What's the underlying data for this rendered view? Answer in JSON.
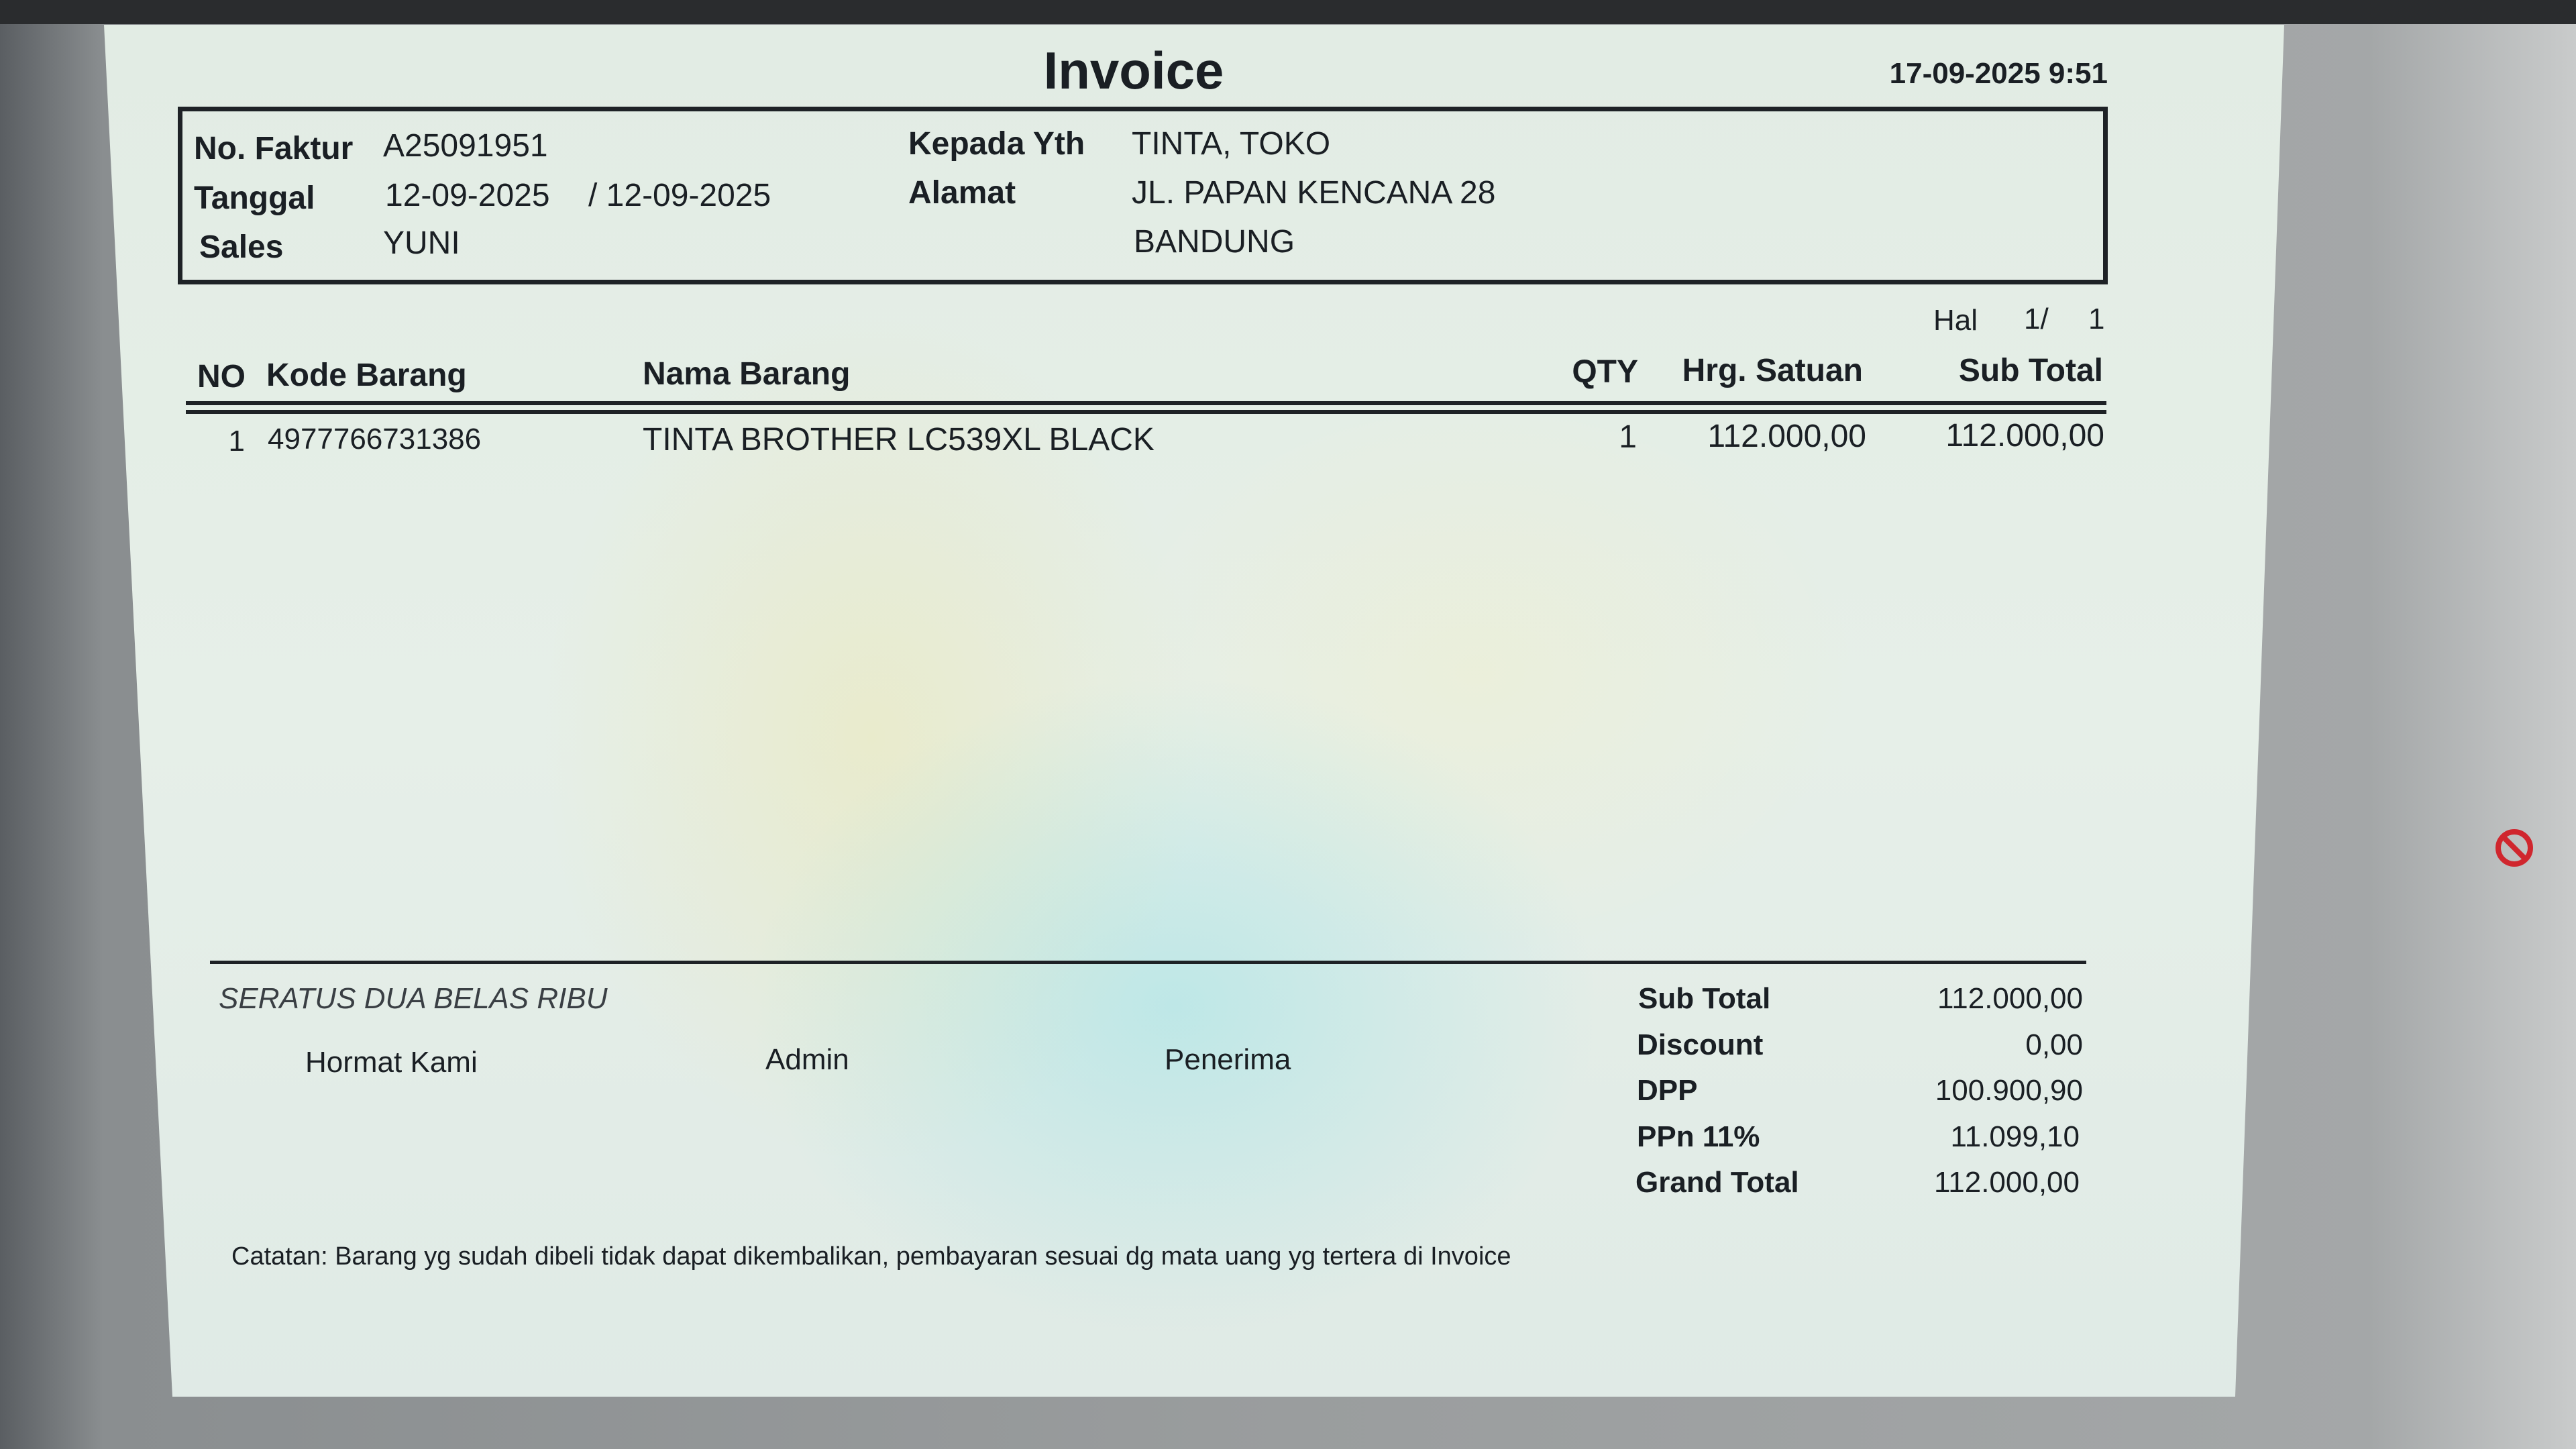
{
  "invoice": {
    "title": "Invoice",
    "printed_at": "17-09-2025 9:51",
    "header": {
      "no_faktur_label": "No. Faktur",
      "no_faktur": "A25091951",
      "tanggal_label": "Tanggal",
      "tanggal": "12-09-2025",
      "tanggal2": "/ 12-09-2025",
      "sales_label": "Sales",
      "sales": "YUNI",
      "kepada_label": "Kepada Yth",
      "kepada": "TINTA, TOKO",
      "alamat_label": "Alamat",
      "alamat_line1": "JL. PAPAN KENCANA 28",
      "alamat_line2": "BANDUNG"
    },
    "page": {
      "label": "Hal",
      "current": "1/",
      "total": "1"
    },
    "columns": {
      "no": "NO",
      "kode": "Kode Barang",
      "nama": "Nama Barang",
      "qty": "QTY",
      "harga": "Hrg. Satuan",
      "subtotal": "Sub Total"
    },
    "items": [
      {
        "no": "1",
        "kode": "4977766731386",
        "nama": "TINTA BROTHER LC539XL BLACK",
        "qty": "1",
        "harga": "112.000,00",
        "subtotal": "112.000,00"
      }
    ],
    "terbilang": "SERATUS DUA BELAS RIBU",
    "signatures": {
      "hormat": "Hormat Kami",
      "admin": "Admin",
      "penerima": "Penerima"
    },
    "summary": [
      {
        "label": "Sub Total",
        "value": "112.000,00"
      },
      {
        "label": "Discount",
        "value": "0,00"
      },
      {
        "label": "DPP",
        "value": "100.900,90"
      },
      {
        "label": "PPn 11%",
        "value": "11.099,10"
      },
      {
        "label": "Grand Total",
        "value": "112.000,00"
      }
    ],
    "note": "Catatan: Barang yg sudah dibeli tidak dapat dikembalikan, pembayaran sesuai dg mata uang yg tertera di Invoice"
  },
  "colors": {
    "text": "#1a1f24",
    "paper": "#e2ece4",
    "no_sign_icon": "#d0262e"
  }
}
